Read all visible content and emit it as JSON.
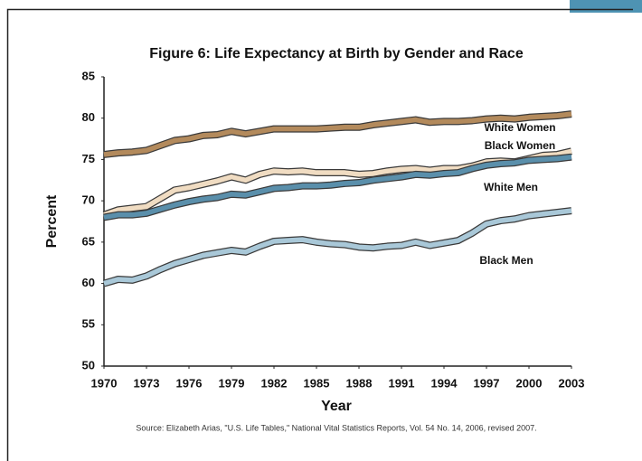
{
  "chart_data": {
    "type": "line",
    "title": "Figure 6: Life Expectancy at Birth by Gender and Race",
    "x_label": "Year",
    "y_label": "Percent",
    "source": "Source: Elizabeth Arias, \"U.S. Life Tables,\" National Vital Statistics Reports, Vol. 54 No. 14, 2006, revised 2007.",
    "x": [
      1970,
      1971,
      1972,
      1973,
      1974,
      1975,
      1976,
      1977,
      1978,
      1979,
      1980,
      1981,
      1982,
      1983,
      1984,
      1985,
      1986,
      1987,
      1988,
      1989,
      1990,
      1991,
      1992,
      1993,
      1994,
      1995,
      1996,
      1997,
      1998,
      1999,
      2000,
      2001,
      2002,
      2003
    ],
    "xlim": [
      1970,
      2003
    ],
    "xticks": [
      1970,
      1973,
      1976,
      1979,
      1982,
      1985,
      1988,
      1991,
      1994,
      1997,
      2000,
      2003
    ],
    "ylim": [
      50,
      85
    ],
    "yticks": [
      50,
      55,
      60,
      65,
      70,
      75,
      80,
      85
    ],
    "series": [
      {
        "name": "White Women",
        "color": "#b38a5c",
        "values": [
          75.6,
          75.8,
          75.9,
          76.1,
          76.7,
          77.3,
          77.5,
          77.9,
          78.0,
          78.4,
          78.1,
          78.4,
          78.7,
          78.7,
          78.7,
          78.7,
          78.8,
          78.9,
          78.9,
          79.2,
          79.4,
          79.6,
          79.8,
          79.5,
          79.6,
          79.6,
          79.7,
          79.9,
          80.0,
          79.9,
          80.1,
          80.2,
          80.3,
          80.5
        ]
      },
      {
        "name": "Black Women",
        "color": "#f0dcc2",
        "values": [
          68.3,
          68.9,
          69.1,
          69.3,
          70.3,
          71.3,
          71.6,
          72.0,
          72.4,
          72.9,
          72.5,
          73.2,
          73.6,
          73.5,
          73.6,
          73.4,
          73.4,
          73.4,
          73.2,
          73.3,
          73.6,
          73.8,
          73.9,
          73.7,
          73.9,
          73.9,
          74.2,
          74.7,
          74.8,
          74.7,
          75.1,
          75.5,
          75.6,
          76.0
        ]
      },
      {
        "name": "White Men",
        "color": "#5a8fab",
        "values": [
          68.0,
          68.3,
          68.3,
          68.5,
          69.0,
          69.5,
          69.9,
          70.2,
          70.4,
          70.8,
          70.7,
          71.1,
          71.5,
          71.6,
          71.8,
          71.8,
          71.9,
          72.1,
          72.2,
          72.5,
          72.7,
          72.9,
          73.2,
          73.1,
          73.3,
          73.4,
          73.9,
          74.3,
          74.5,
          74.6,
          74.9,
          75.0,
          75.1,
          75.3
        ]
      },
      {
        "name": "Black Men",
        "color": "#a9c8d8",
        "values": [
          60.0,
          60.5,
          60.4,
          60.9,
          61.7,
          62.4,
          62.9,
          63.4,
          63.7,
          64.0,
          63.8,
          64.5,
          65.1,
          65.2,
          65.3,
          65.0,
          64.8,
          64.7,
          64.4,
          64.3,
          64.5,
          64.6,
          65.0,
          64.6,
          64.9,
          65.2,
          66.1,
          67.2,
          67.6,
          67.8,
          68.2,
          68.4,
          68.6,
          68.8
        ]
      }
    ]
  }
}
